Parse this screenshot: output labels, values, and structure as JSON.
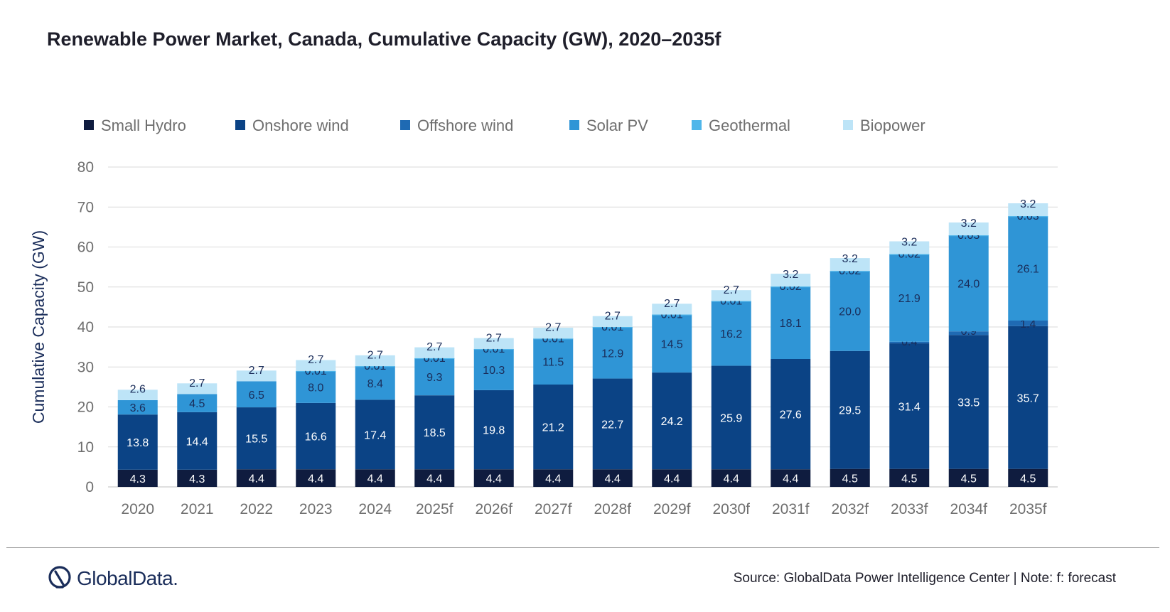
{
  "title": "Renewable Power Market, Canada, Cumulative Capacity (GW), 2020–2035f",
  "source": "Source: GlobalData Power Intelligence Center | Note: f: forecast",
  "logo_text": "GlobalData.",
  "chart_data": {
    "type": "bar",
    "stacked": true,
    "title": "Renewable Power Market, Canada, Cumulative Capacity (GW), 2020–2035f",
    "xlabel": "",
    "ylabel": "Cumulative Capacity (GW)",
    "ylim": [
      0,
      80
    ],
    "yticks": [
      0,
      10,
      20,
      30,
      40,
      50,
      60,
      70,
      80
    ],
    "grid": true,
    "legend_position": "top",
    "categories": [
      "2020",
      "2021",
      "2022",
      "2023",
      "2024",
      "2025f",
      "2026f",
      "2027f",
      "2028f",
      "2029f",
      "2030f",
      "2031f",
      "2032f",
      "2033f",
      "2034f",
      "2035f"
    ],
    "series": [
      {
        "name": "Small Hydro",
        "color": "#0f1c3f",
        "label_color": "#ffffff",
        "values": [
          4.3,
          4.3,
          4.4,
          4.4,
          4.4,
          4.4,
          4.4,
          4.4,
          4.4,
          4.4,
          4.4,
          4.4,
          4.5,
          4.5,
          4.5,
          4.5
        ],
        "labels": [
          "4.3",
          "4.3",
          "4.4",
          "4.4",
          "4.4",
          "4.4",
          "4.4",
          "4.4",
          "4.4",
          "4.4",
          "4.4",
          "4.4",
          "4.5",
          "4.5",
          "4.5",
          "4.5"
        ]
      },
      {
        "name": "Onshore wind",
        "color": "#0b4385",
        "label_color": "#ffffff",
        "values": [
          13.8,
          14.4,
          15.5,
          16.6,
          17.4,
          18.5,
          19.8,
          21.2,
          22.7,
          24.2,
          25.9,
          27.6,
          29.5,
          31.4,
          33.5,
          35.7
        ],
        "labels": [
          "13.8",
          "14.4",
          "15.5",
          "16.6",
          "17.4",
          "18.5",
          "19.8",
          "21.2",
          "22.7",
          "24.2",
          "25.9",
          "27.6",
          "29.5",
          "31.4",
          "33.5",
          "35.7"
        ]
      },
      {
        "name": "Offshore wind",
        "color": "#1f6ab3",
        "label_color": "#1a2d5a",
        "values": [
          0,
          0,
          0,
          0,
          0,
          0,
          0,
          0,
          0,
          0,
          0,
          0,
          0,
          0.4,
          0.9,
          1.4
        ],
        "labels": [
          "",
          "",
          "",
          "",
          "",
          "",
          "",
          "",
          "",
          "",
          "",
          "",
          "",
          "0.4",
          "0.9",
          "1.4"
        ]
      },
      {
        "name": "Solar PV",
        "color": "#2f95d6",
        "label_color": "#1a2d5a",
        "values": [
          3.6,
          4.5,
          6.5,
          8.0,
          8.4,
          9.3,
          10.3,
          11.5,
          12.9,
          14.5,
          16.2,
          18.1,
          20.0,
          21.9,
          24.0,
          26.1
        ],
        "labels": [
          "3.6",
          "4.5",
          "6.5",
          "8.0",
          "8.4",
          "9.3",
          "10.3",
          "11.5",
          "12.9",
          "14.5",
          "16.2",
          "18.1",
          "20.0",
          "21.9",
          "24.0",
          "26.1"
        ]
      },
      {
        "name": "Geothermal",
        "color": "#4fb6ea",
        "label_color": "#1a2d5a",
        "values": [
          0,
          0,
          0,
          0.01,
          0.01,
          0.01,
          0.01,
          0.01,
          0.01,
          0.01,
          0.01,
          0.02,
          0.02,
          0.02,
          0.03,
          0.03
        ],
        "labels": [
          "",
          "",
          "",
          "0.01",
          "0.01",
          "0.01",
          "0.01",
          "0.01",
          "0.01",
          "0.01",
          "0.01",
          "0.02",
          "0.02",
          "0.02",
          "0.03",
          "0.03"
        ]
      },
      {
        "name": "Biopower",
        "color": "#bde4f7",
        "label_color": "#1a2d5a",
        "values": [
          2.6,
          2.7,
          2.7,
          2.7,
          2.7,
          2.7,
          2.7,
          2.7,
          2.7,
          2.7,
          2.7,
          3.2,
          3.2,
          3.2,
          3.2,
          3.2
        ],
        "labels": [
          "2.6",
          "2.7",
          "2.7",
          "2.7",
          "2.7",
          "2.7",
          "2.7",
          "2.7",
          "2.7",
          "2.7",
          "2.7",
          "3.2",
          "3.2",
          "3.2",
          "3.2",
          "3.2"
        ]
      }
    ]
  }
}
